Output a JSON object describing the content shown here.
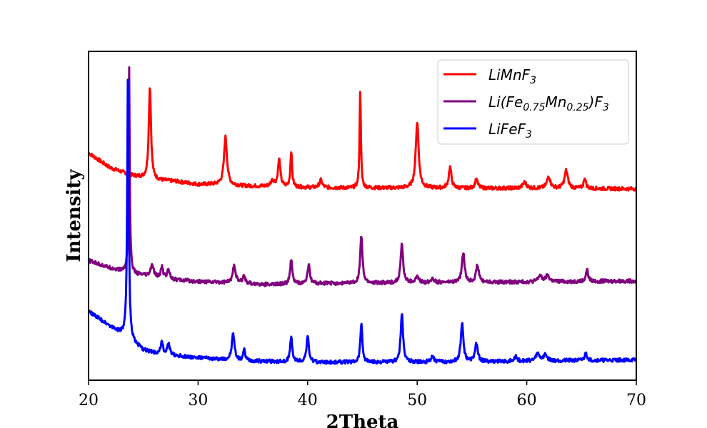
{
  "chart_data": {
    "type": "line",
    "xlabel": "2Theta",
    "ylabel": "Intensity",
    "xlim": [
      20,
      70
    ],
    "ylim": [
      0,
      1.1
    ],
    "xticks": [
      20,
      30,
      40,
      50,
      60,
      70
    ],
    "yticks_shown": false,
    "grid": false,
    "legend_position": "top-right",
    "series": [
      {
        "name": "LiMnF3",
        "legend": {
          "base": "LiMnF",
          "sub": "3",
          "tail": ""
        },
        "color": "#ff0000",
        "baseline": [
          [
            20,
            0.76
          ],
          [
            22,
            0.71
          ],
          [
            24,
            0.685
          ],
          [
            26,
            0.67
          ],
          [
            28,
            0.665
          ],
          [
            30,
            0.655
          ],
          [
            32,
            0.655
          ],
          [
            34,
            0.65
          ],
          [
            36,
            0.648
          ],
          [
            40,
            0.645
          ],
          [
            44,
            0.643
          ],
          [
            50,
            0.643
          ],
          [
            56,
            0.642
          ],
          [
            62,
            0.642
          ],
          [
            70,
            0.64
          ]
        ],
        "peaks": [
          [
            25.6,
            0.31,
            0.12
          ],
          [
            32.5,
            0.16,
            0.16
          ],
          [
            36.8,
            0.02,
            0.2
          ],
          [
            37.4,
            0.09,
            0.13
          ],
          [
            38.5,
            0.12,
            0.09
          ],
          [
            41.2,
            0.025,
            0.15
          ],
          [
            44.8,
            0.33,
            0.07
          ],
          [
            50.0,
            0.22,
            0.16
          ],
          [
            53.0,
            0.07,
            0.14
          ],
          [
            55.4,
            0.03,
            0.15
          ],
          [
            59.8,
            0.02,
            0.2
          ],
          [
            62.0,
            0.04,
            0.18
          ],
          [
            63.6,
            0.06,
            0.18
          ],
          [
            65.3,
            0.035,
            0.12
          ]
        ]
      },
      {
        "name": "Li(Fe0.75Mn0.25)F3",
        "legend": {
          "base": "Li(Fe",
          "sub": "0.75",
          "mid": "Mn",
          "sub2": "0.25",
          "tail": ")F",
          "sub3": "3"
        },
        "color": "#800080",
        "baseline": [
          [
            20,
            0.4
          ],
          [
            22,
            0.375
          ],
          [
            24,
            0.355
          ],
          [
            26,
            0.345
          ],
          [
            28,
            0.335
          ],
          [
            30,
            0.33
          ],
          [
            34,
            0.325
          ],
          [
            36,
            0.32
          ],
          [
            40,
            0.323
          ],
          [
            46,
            0.325
          ],
          [
            52,
            0.327
          ],
          [
            58,
            0.328
          ],
          [
            64,
            0.33
          ],
          [
            70,
            0.332
          ]
        ],
        "peaks": [
          [
            23.7,
            0.7,
            0.065
          ],
          [
            25.8,
            0.04,
            0.15
          ],
          [
            26.7,
            0.035,
            0.12
          ],
          [
            27.3,
            0.03,
            0.15
          ],
          [
            33.3,
            0.06,
            0.15
          ],
          [
            34.2,
            0.025,
            0.12
          ],
          [
            38.5,
            0.08,
            0.12
          ],
          [
            40.1,
            0.065,
            0.12
          ],
          [
            44.9,
            0.16,
            0.12
          ],
          [
            48.6,
            0.13,
            0.13
          ],
          [
            50.0,
            0.02,
            0.15
          ],
          [
            51.4,
            0.015,
            0.15
          ],
          [
            54.2,
            0.1,
            0.14
          ],
          [
            55.5,
            0.055,
            0.16
          ],
          [
            61.2,
            0.02,
            0.2
          ],
          [
            61.9,
            0.02,
            0.2
          ],
          [
            65.5,
            0.04,
            0.12
          ]
        ]
      },
      {
        "name": "LiFeF3",
        "legend": {
          "base": "LiFeF",
          "sub": "3",
          "tail": ""
        },
        "color": "#0000ff",
        "baseline": [
          [
            20,
            0.23
          ],
          [
            21,
            0.205
          ],
          [
            22,
            0.18
          ],
          [
            23,
            0.155
          ],
          [
            25,
            0.1
          ],
          [
            27,
            0.085
          ],
          [
            30,
            0.075
          ],
          [
            34,
            0.065
          ],
          [
            40,
            0.06
          ],
          [
            48,
            0.06
          ],
          [
            56,
            0.062
          ],
          [
            62,
            0.065
          ],
          [
            70,
            0.068
          ]
        ],
        "peaks": [
          [
            23.6,
            0.9,
            0.08
          ],
          [
            26.7,
            0.04,
            0.12
          ],
          [
            27.3,
            0.035,
            0.15
          ],
          [
            33.2,
            0.09,
            0.14
          ],
          [
            34.2,
            0.035,
            0.12
          ],
          [
            38.5,
            0.08,
            0.12
          ],
          [
            40.0,
            0.085,
            0.13
          ],
          [
            44.9,
            0.13,
            0.11
          ],
          [
            48.6,
            0.16,
            0.13
          ],
          [
            51.4,
            0.02,
            0.15
          ],
          [
            54.1,
            0.13,
            0.14
          ],
          [
            55.4,
            0.06,
            0.15
          ],
          [
            59.0,
            0.015,
            0.15
          ],
          [
            61.0,
            0.025,
            0.2
          ],
          [
            61.7,
            0.02,
            0.2
          ],
          [
            65.4,
            0.025,
            0.13
          ]
        ]
      }
    ]
  }
}
